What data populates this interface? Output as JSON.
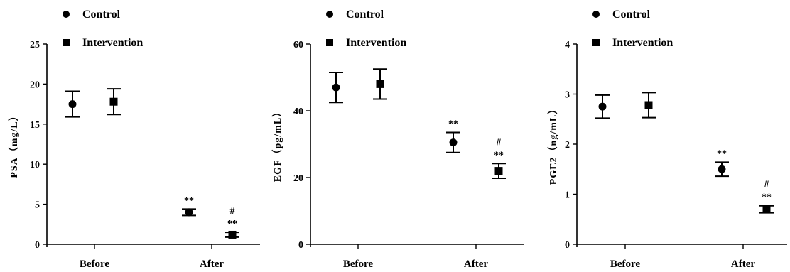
{
  "chart_data": [
    {
      "type": "scatter",
      "ylabel": "PSA（mg/L）",
      "categories": [
        "Before",
        "After"
      ],
      "yticks": [
        0,
        5,
        10,
        15,
        20,
        25
      ],
      "ylim": [
        0,
        25
      ],
      "legend": [
        "Control",
        "Intervention"
      ],
      "series": [
        {
          "name": "Control",
          "marker": "circle",
          "values": [
            17.5,
            4.0
          ],
          "errors": [
            1.6,
            0.4
          ]
        },
        {
          "name": "Intervention",
          "marker": "square",
          "values": [
            17.8,
            1.2
          ],
          "errors": [
            1.6,
            0.3
          ]
        }
      ],
      "annotations": [
        {
          "series": "Control",
          "category": "After",
          "labels": [
            "**"
          ]
        },
        {
          "series": "Intervention",
          "category": "After",
          "labels": [
            "#",
            "**"
          ]
        }
      ]
    },
    {
      "type": "scatter",
      "ylabel": "EGF（pg/mL）",
      "categories": [
        "Before",
        "After"
      ],
      "yticks": [
        0,
        20,
        40,
        60
      ],
      "ylim": [
        0,
        60
      ],
      "legend": [
        "Control",
        "Intervention"
      ],
      "series": [
        {
          "name": "Control",
          "marker": "circle",
          "values": [
            47.0,
            30.5
          ],
          "errors": [
            4.5,
            3.0
          ]
        },
        {
          "name": "Intervention",
          "marker": "square",
          "values": [
            48.0,
            22.0
          ],
          "errors": [
            4.5,
            2.2
          ]
        }
      ],
      "annotations": [
        {
          "series": "Control",
          "category": "After",
          "labels": [
            "**"
          ]
        },
        {
          "series": "Intervention",
          "category": "After",
          "labels": [
            "#",
            "**"
          ]
        }
      ]
    },
    {
      "type": "scatter",
      "ylabel": "PGE2（ng/mL）",
      "categories": [
        "Before",
        "After"
      ],
      "yticks": [
        0,
        1,
        2,
        3,
        4
      ],
      "ylim": [
        0,
        4
      ],
      "legend": [
        "Control",
        "Intervention"
      ],
      "series": [
        {
          "name": "Control",
          "marker": "circle",
          "values": [
            2.75,
            1.5
          ],
          "errors": [
            0.23,
            0.14
          ]
        },
        {
          "name": "Intervention",
          "marker": "square",
          "values": [
            2.78,
            0.7
          ],
          "errors": [
            0.25,
            0.07
          ]
        }
      ],
      "annotations": [
        {
          "series": "Control",
          "category": "After",
          "labels": [
            "**"
          ]
        },
        {
          "series": "Intervention",
          "category": "After",
          "labels": [
            "#",
            "**"
          ]
        }
      ]
    }
  ]
}
